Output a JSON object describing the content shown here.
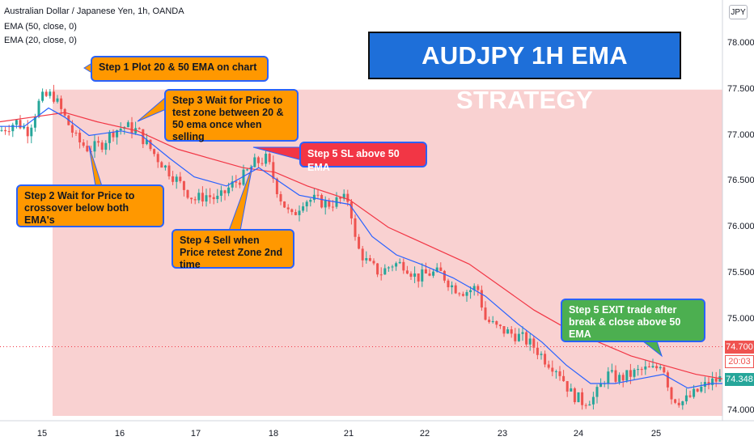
{
  "legend": {
    "symbol": "Australian Dollar / Japanese Yen, 1h, OANDA",
    "ema50": "EMA (50, close, 0)",
    "ema20": "EMA (20, close, 0)"
  },
  "currency_button": "JPY",
  "headline": "AUDJPY 1H EMA STRATEGY",
  "callouts": {
    "step1": "Step 1 Plot 20 & 50 EMA on chart",
    "step2": "Step 2 Wait for Price to crossover below both EMA's",
    "step3": "Step 3 Wait for Price to test zone between 20 & 50 ema once when selling",
    "step4": "Step 4 Sell when Price retest Zone 2nd time",
    "step5_sl": "Step 5 SL above 50 EMA",
    "step5_exit": "Step 5 EXIT trade after break & close above 50 EMA"
  },
  "price_tags": {
    "level": "74.700",
    "countdown": "20:03",
    "last": "74.348"
  },
  "colors": {
    "up": "#26a69a",
    "down": "#ef5350",
    "ema20": "#2962ff",
    "ema50": "#f23645",
    "zone": "#f9d1d1",
    "callout_orange": "#ff9800",
    "callout_red": "#f23645",
    "callout_green": "#4caf50",
    "headline_bg": "#1e6fd9"
  },
  "chart_data": {
    "type": "candlestick",
    "title": "Australian Dollar / Japanese Yen, 1h, OANDA",
    "y_ticks": [
      "78.000",
      "77.500",
      "77.000",
      "76.500",
      "76.000",
      "75.500",
      "75.000",
      "74.500",
      "74.000"
    ],
    "ylim": [
      73.95,
      78.3
    ],
    "x_ticks": [
      "15",
      "16",
      "17",
      "18",
      "21",
      "22",
      "23",
      "24",
      "25"
    ],
    "series": [
      {
        "name": "EMA (50, close, 0)",
        "color": "#f23645"
      },
      {
        "name": "EMA (20, close, 0)",
        "color": "#2962ff"
      }
    ],
    "close_path": [
      [
        0,
        77.05
      ],
      [
        20,
        77.15
      ],
      [
        35,
        77.05
      ],
      [
        50,
        77.4
      ],
      [
        65,
        77.45
      ],
      [
        80,
        77.2
      ],
      [
        95,
        76.95
      ],
      [
        110,
        76.85
      ],
      [
        125,
        76.9
      ],
      [
        140,
        77.05
      ],
      [
        155,
        77.1
      ],
      [
        170,
        77.05
      ],
      [
        182,
        76.9
      ],
      [
        195,
        76.75
      ],
      [
        210,
        76.6
      ],
      [
        225,
        76.45
      ],
      [
        240,
        76.3
      ],
      [
        255,
        76.35
      ],
      [
        270,
        76.3
      ],
      [
        285,
        76.45
      ],
      [
        300,
        76.55
      ],
      [
        315,
        76.7
      ],
      [
        330,
        76.75
      ],
      [
        345,
        76.35
      ],
      [
        360,
        76.1
      ],
      [
        375,
        76.3
      ],
      [
        390,
        76.3
      ],
      [
        405,
        76.25
      ],
      [
        420,
        76.3
      ],
      [
        432,
        76.3
      ],
      [
        440,
        75.8
      ],
      [
        455,
        75.6
      ],
      [
        470,
        75.5
      ],
      [
        485,
        75.6
      ],
      [
        500,
        75.6
      ],
      [
        515,
        75.45
      ],
      [
        530,
        75.5
      ],
      [
        545,
        75.5
      ],
      [
        560,
        75.35
      ],
      [
        575,
        75.3
      ],
      [
        590,
        75.35
      ],
      [
        600,
        75.0
      ],
      [
        615,
        74.9
      ],
      [
        630,
        74.85
      ],
      [
        645,
        74.8
      ],
      [
        660,
        74.7
      ],
      [
        675,
        74.55
      ],
      [
        690,
        74.45
      ],
      [
        705,
        74.2
      ],
      [
        720,
        74.1
      ],
      [
        735,
        74.15
      ],
      [
        750,
        74.4
      ],
      [
        765,
        74.35
      ],
      [
        780,
        74.4
      ],
      [
        795,
        74.45
      ],
      [
        810,
        74.45
      ],
      [
        818,
        74.55
      ],
      [
        830,
        74.15
      ],
      [
        845,
        74.1
      ],
      [
        860,
        74.2
      ],
      [
        875,
        74.3
      ],
      [
        890,
        74.35
      ]
    ],
    "ema20_path": [
      [
        0,
        77.1
      ],
      [
        30,
        77.1
      ],
      [
        60,
        77.3
      ],
      [
        80,
        77.2
      ],
      [
        110,
        77.0
      ],
      [
        150,
        77.05
      ],
      [
        175,
        77.0
      ],
      [
        210,
        76.75
      ],
      [
        240,
        76.55
      ],
      [
        280,
        76.45
      ],
      [
        320,
        76.65
      ],
      [
        345,
        76.5
      ],
      [
        370,
        76.35
      ],
      [
        400,
        76.3
      ],
      [
        432,
        76.25
      ],
      [
        460,
        75.9
      ],
      [
        490,
        75.7
      ],
      [
        520,
        75.6
      ],
      [
        560,
        75.45
      ],
      [
        600,
        75.25
      ],
      [
        640,
        74.95
      ],
      [
        670,
        74.75
      ],
      [
        700,
        74.5
      ],
      [
        730,
        74.3
      ],
      [
        760,
        74.3
      ],
      [
        790,
        74.35
      ],
      [
        820,
        74.4
      ],
      [
        850,
        74.25
      ],
      [
        880,
        74.3
      ],
      [
        893,
        74.3
      ]
    ],
    "ema50_path": [
      [
        0,
        77.15
      ],
      [
        40,
        77.2
      ],
      [
        80,
        77.25
      ],
      [
        120,
        77.15
      ],
      [
        170,
        77.05
      ],
      [
        220,
        76.85
      ],
      [
        260,
        76.75
      ],
      [
        300,
        76.65
      ],
      [
        340,
        76.6
      ],
      [
        380,
        76.45
      ],
      [
        432,
        76.3
      ],
      [
        480,
        76.0
      ],
      [
        530,
        75.8
      ],
      [
        580,
        75.6
      ],
      [
        620,
        75.35
      ],
      [
        660,
        75.1
      ],
      [
        700,
        74.9
      ],
      [
        740,
        74.75
      ],
      [
        780,
        74.6
      ],
      [
        820,
        74.5
      ],
      [
        860,
        74.4
      ],
      [
        893,
        74.35
      ]
    ],
    "zone": {
      "from_price": 77.5,
      "to_price": 73.95
    },
    "horizontal_level": 74.7,
    "last_price": 74.348,
    "grid": false
  }
}
